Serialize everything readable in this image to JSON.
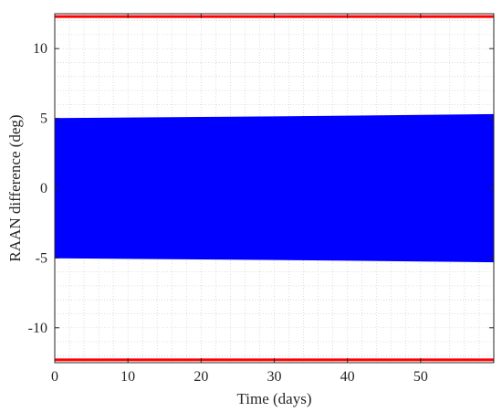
{
  "chart_data": {
    "type": "area",
    "title": "",
    "xlabel": "Time (days)",
    "ylabel": "RAAN difference (deg)",
    "xlim": [
      0,
      60
    ],
    "ylim": [
      -12.5,
      12.5
    ],
    "xticks": [
      0,
      10,
      20,
      30,
      40,
      50
    ],
    "yticks": [
      -10,
      -5,
      0,
      5,
      10
    ],
    "xtick_labels": [
      "0",
      "10",
      "20",
      "30",
      "40",
      "50"
    ],
    "ytick_labels": [
      "-10",
      "-5",
      "0",
      "5",
      "10"
    ],
    "grid": "dotted, minor",
    "series": [
      {
        "role": "RAAN difference envelope",
        "color": "#0000ff",
        "x": [
          0,
          10,
          20,
          30,
          40,
          50,
          60
        ],
        "upper": [
          5.0,
          5.04,
          5.08,
          5.12,
          5.17,
          5.22,
          5.28
        ],
        "lower": [
          -5.0,
          -5.04,
          -5.08,
          -5.12,
          -5.17,
          -5.22,
          -5.28
        ]
      },
      {
        "role": "upper limit",
        "color": "#ff0000",
        "x": [
          0,
          60
        ],
        "y": [
          12.3,
          12.3
        ]
      },
      {
        "role": "lower limit",
        "color": "#ff0000",
        "x": [
          0,
          60
        ],
        "y": [
          -12.3,
          -12.3
        ]
      }
    ]
  }
}
